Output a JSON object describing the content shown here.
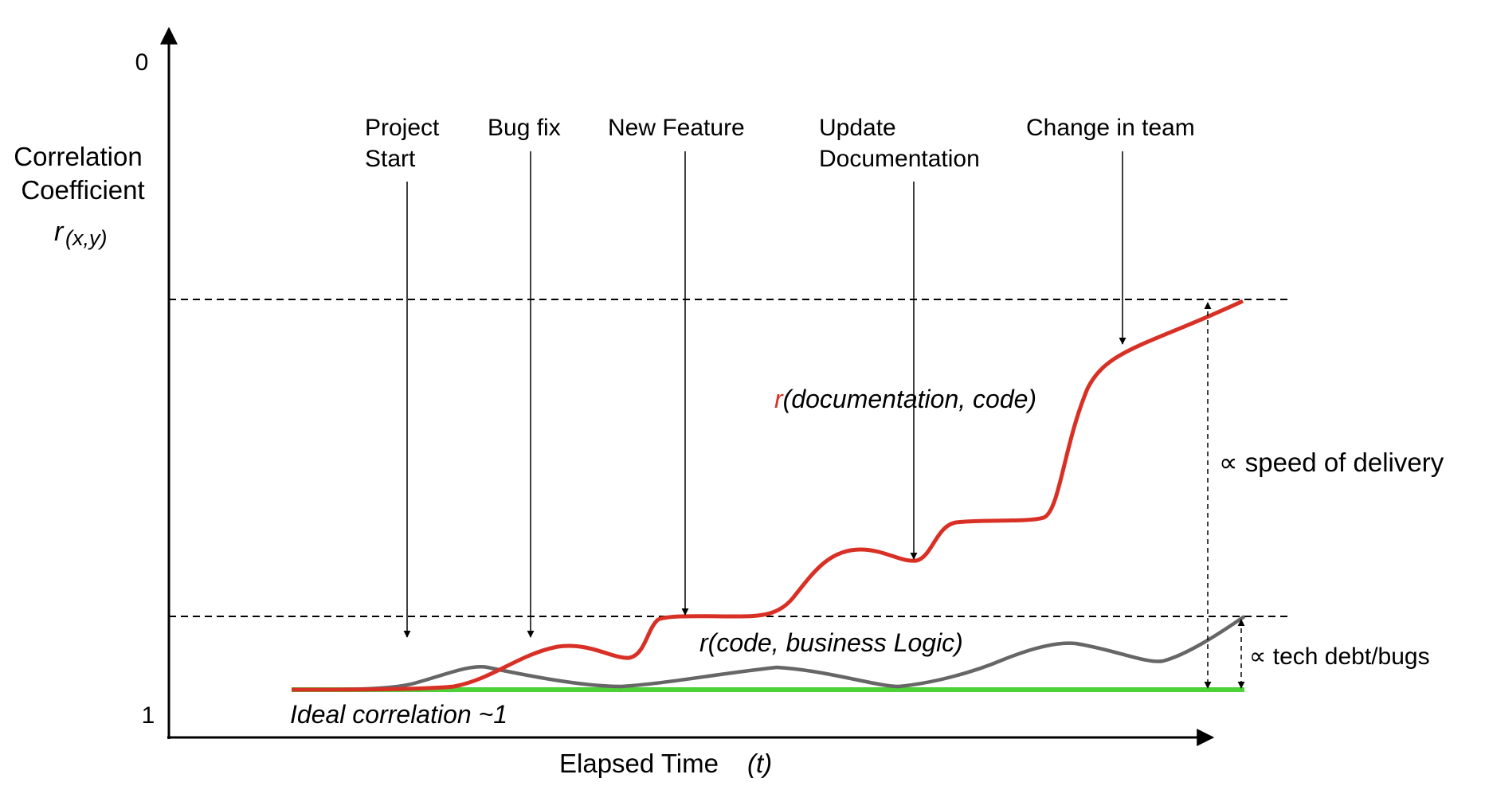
{
  "axes": {
    "y_label_line1": "Correlation",
    "y_label_line2": "Coefficient",
    "y_symbol": "r",
    "y_symbol_sub": "(x,y)",
    "y_tick_top": "0",
    "y_tick_bottom": "1",
    "x_label": "Elapsed Time",
    "x_label_var": "(t)"
  },
  "events": [
    {
      "line1": "Project",
      "line2": "Start"
    },
    {
      "line1": "Bug fix",
      "line2": ""
    },
    {
      "line1": "New Feature",
      "line2": ""
    },
    {
      "line1": "Update",
      "line2": "Documentation"
    },
    {
      "line1": "Change in team",
      "line2": ""
    }
  ],
  "curves": {
    "doc_prefix": "r",
    "doc_label": "(documentation, code)",
    "code_label": "r(code, business Logic)",
    "ideal_label": "Ideal correlation ~1"
  },
  "gaps": {
    "speed_label": "∝ speed of delivery",
    "debt_label": "∝ tech debt/bugs"
  },
  "colors": {
    "doc_curve": "#d93025",
    "code_curve": "#666666",
    "ideal_line": "#4cd137",
    "ideal_text": "#56a42a"
  }
}
